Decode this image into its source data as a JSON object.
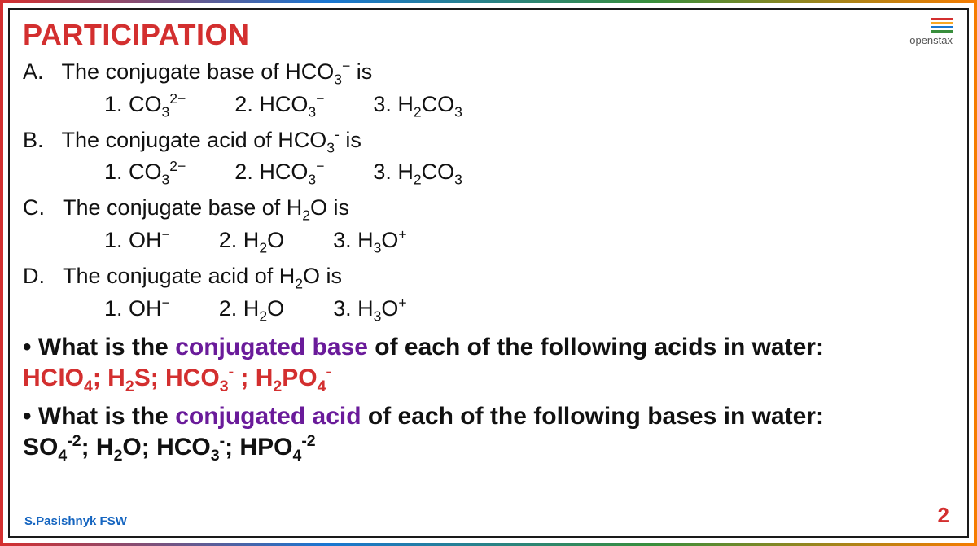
{
  "title": "PARTICIPATION",
  "brand": "openstax",
  "brand_colors": [
    "#d32f2f",
    "#f9a825",
    "#1976d2",
    "#388e3c"
  ],
  "questions": {
    "A": {
      "label": "A.",
      "prompt_pre": "The conjugate base of HCO",
      "prompt_sub": "3",
      "prompt_sup": "−",
      "prompt_post": " is",
      "opts": [
        {
          "n": "1.",
          "main": "CO",
          "sub": "3",
          "sup": "2−"
        },
        {
          "n": "2.",
          "main": "HCO",
          "sub": "3",
          "sup": "−"
        },
        {
          "n": "3.",
          "main": "H",
          "sub2": "2",
          "main2": "CO",
          "sub": "3",
          "sup": ""
        }
      ]
    },
    "B": {
      "label": "B.",
      "prompt_pre": "The conjugate acid of HCO",
      "prompt_sub": "3",
      "prompt_sup": "-",
      "prompt_post": " is",
      "opts": [
        {
          "n": "1.",
          "main": "CO",
          "sub": "3",
          "sup": "2−"
        },
        {
          "n": "2.",
          "main": "HCO",
          "sub": "3",
          "sup": "−"
        },
        {
          "n": "3.",
          "main": "H",
          "sub2": "2",
          "main2": "CO",
          "sub": "3",
          "sup": ""
        }
      ]
    },
    "C": {
      "label": "C.",
      "prompt_pre": "The conjugate base of H",
      "prompt_sub": "2",
      "prompt_sup": "",
      "prompt_post": "O is",
      "opts": [
        {
          "n": "1.",
          "main": "OH",
          "sub": "",
          "sup": "−"
        },
        {
          "n": "2.",
          "main": "H",
          "sub2": "2",
          "main2": "O",
          "sub": "",
          "sup": ""
        },
        {
          "n": "3.",
          "main": "H",
          "sub2": "3",
          "main2": "O",
          "sub": "",
          "sup": "+"
        }
      ]
    },
    "D": {
      "label": "D.",
      "prompt_pre": "The conjugate acid of H",
      "prompt_sub": "2",
      "prompt_sup": "",
      "prompt_post": "O is",
      "opts": [
        {
          "n": "1.",
          "main": "OH",
          "sub": "",
          "sup": "−"
        },
        {
          "n": "2.",
          "main": "H",
          "sub2": "2",
          "main2": "O",
          "sub": "",
          "sup": ""
        },
        {
          "n": "3.",
          "main": "H",
          "sub2": "3",
          "main2": "O",
          "sub": "",
          "sup": "+"
        }
      ]
    }
  },
  "bullet1": {
    "lead": "• What is the ",
    "keyword": "conjugated base",
    "tail": " of each of the following acids in water:",
    "chem_parts": [
      {
        "t": "HClO",
        "sub": "4"
      },
      {
        "t": "; H",
        "sub": "2"
      },
      {
        "t": "S; HCO",
        "sub": "3",
        "sup": "-"
      },
      {
        "t": " ; H",
        "sub": "2"
      },
      {
        "t": "PO",
        "sub": "4",
        "sup": "-"
      }
    ]
  },
  "bullet2": {
    "lead": "• What is the ",
    "keyword": "conjugated acid",
    "tail": " of each of the following bases in water:",
    "chem_parts": [
      {
        "t": "SO",
        "sub": "4",
        "sup": "-2"
      },
      {
        "t": "; H",
        "sub": "2"
      },
      {
        "t": "O; HCO",
        "sub": "3",
        "sup": "-"
      },
      {
        "t": "; HPO",
        "sub": "4",
        "sup": "-2"
      }
    ]
  },
  "footer_author": "S.Pasishnyk FSW",
  "page_number": "2",
  "colors": {
    "title": "#d32f2f",
    "text": "#111111",
    "purple": "#6a1b9a",
    "red": "#d32f2f",
    "footer": "#1565c0",
    "border_gradient": [
      "#d32f2f",
      "#1976d2",
      "#388e3c",
      "#f57c00"
    ]
  },
  "font_sizes": {
    "title": 36,
    "body": 27,
    "bullet": 30,
    "footer": 15,
    "pagenum": 26
  }
}
